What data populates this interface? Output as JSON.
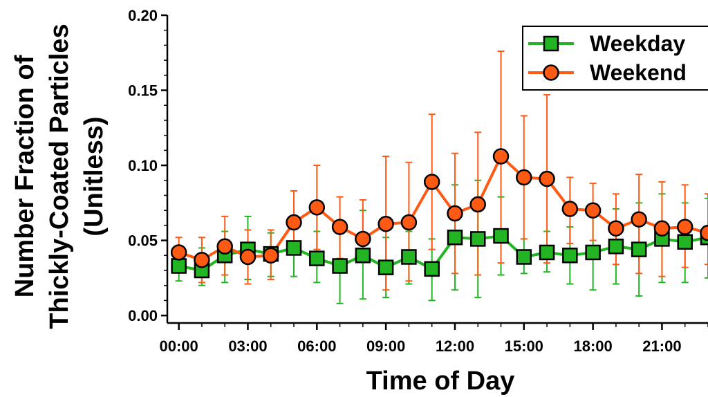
{
  "chart_data": {
    "type": "line",
    "xlabel": "Time of Day",
    "ylabel_lines": [
      "Number Fraction of",
      "Thickly-Coated Particles",
      "(Unitless)"
    ],
    "xlim": [
      -0.5,
      23
    ],
    "ylim": [
      -0.005,
      0.2
    ],
    "x_ticks": [
      {
        "hour": 0,
        "label": "00:00"
      },
      {
        "hour": 3,
        "label": "03:00"
      },
      {
        "hour": 6,
        "label": "06:00"
      },
      {
        "hour": 9,
        "label": "09:00"
      },
      {
        "hour": 12,
        "label": "12:00"
      },
      {
        "hour": 15,
        "label": "15:00"
      },
      {
        "hour": 18,
        "label": "18:00"
      },
      {
        "hour": 21,
        "label": "21:00"
      }
    ],
    "y_ticks": [
      {
        "value": 0.0,
        "label": "0.00"
      },
      {
        "value": 0.05,
        "label": "0.05"
      },
      {
        "value": 0.1,
        "label": "0.10"
      },
      {
        "value": 0.15,
        "label": "0.15"
      },
      {
        "value": 0.2,
        "label": "0.20"
      }
    ],
    "hours": [
      0,
      1,
      2,
      3,
      4,
      5,
      6,
      7,
      8,
      9,
      10,
      11,
      12,
      13,
      14,
      15,
      16,
      17,
      18,
      19,
      20,
      21,
      22,
      23
    ],
    "legend_position": "top-right",
    "series": [
      {
        "name": "Weekday",
        "marker": "square",
        "color": "#22b422",
        "values": [
          0.033,
          0.03,
          0.04,
          0.044,
          0.041,
          0.045,
          0.038,
          0.033,
          0.04,
          0.032,
          0.039,
          0.031,
          0.052,
          0.051,
          0.053,
          0.039,
          0.042,
          0.04,
          0.042,
          0.046,
          0.044,
          0.051,
          0.049,
          0.052
        ],
        "err_low": [
          0.023,
          0.02,
          0.022,
          0.024,
          0.026,
          0.026,
          0.022,
          0.008,
          0.011,
          0.012,
          0.021,
          0.01,
          0.017,
          0.012,
          0.027,
          0.028,
          0.029,
          0.021,
          0.017,
          0.021,
          0.013,
          0.022,
          0.022,
          0.025
        ],
        "err_high": [
          0.046,
          0.045,
          0.056,
          0.066,
          0.055,
          0.061,
          0.056,
          0.058,
          0.07,
          0.052,
          0.056,
          0.051,
          0.087,
          0.09,
          0.079,
          0.051,
          0.056,
          0.059,
          0.067,
          0.071,
          0.075,
          0.081,
          0.075,
          0.078
        ]
      },
      {
        "name": "Weekend",
        "marker": "circle",
        "color": "#ff5a14",
        "values": [
          0.042,
          0.037,
          0.046,
          0.039,
          0.04,
          0.062,
          0.072,
          0.059,
          0.051,
          0.061,
          0.062,
          0.089,
          0.068,
          0.074,
          0.106,
          0.092,
          0.091,
          0.071,
          0.07,
          0.058,
          0.064,
          0.058,
          0.059,
          0.055
        ],
        "err_low": [
          0.032,
          0.022,
          0.027,
          0.021,
          0.024,
          0.041,
          0.044,
          0.038,
          0.036,
          0.017,
          0.023,
          0.044,
          0.028,
          0.027,
          0.035,
          0.051,
          0.035,
          0.048,
          0.05,
          0.034,
          0.028,
          0.026,
          0.032,
          0.034
        ],
        "err_high": [
          0.052,
          0.052,
          0.066,
          0.057,
          0.057,
          0.083,
          0.1,
          0.079,
          0.077,
          0.106,
          0.102,
          0.134,
          0.108,
          0.122,
          0.176,
          0.133,
          0.147,
          0.092,
          0.088,
          0.081,
          0.094,
          0.089,
          0.087,
          0.081
        ]
      }
    ]
  }
}
